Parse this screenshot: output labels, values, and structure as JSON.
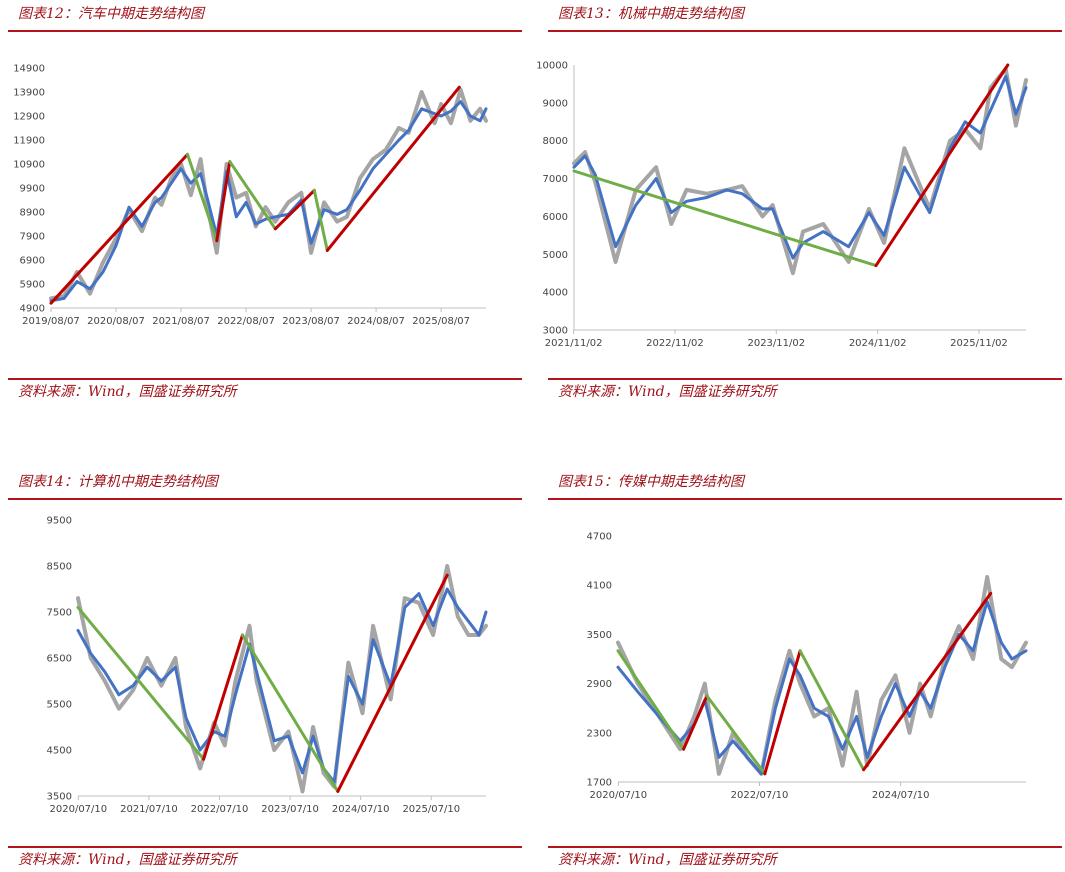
{
  "source_text": "资料来源：Wind，国盛证券研究所",
  "colors": {
    "title": "#a0121a",
    "rule": "#b3131b",
    "blue_series": "#4472c4",
    "gray_series": "#a5a5a5",
    "up_trend": "#c00000",
    "down_trend": "#70ad47",
    "axis": "#bfbfbf"
  },
  "chart_data": [
    {
      "type": "line",
      "title": "图表12：汽车中期走势结构图",
      "x_ticks": [
        "2019/08/07",
        "2020/08/07",
        "2021/08/07",
        "2022/08/07",
        "2023/08/07",
        "2024/08/07",
        "2025/08/07"
      ],
      "x_range": [
        2019.6,
        2026.29
      ],
      "y_ticks": [
        4900,
        5900,
        6900,
        7900,
        8900,
        9900,
        10900,
        11900,
        12900,
        13900,
        14900
      ],
      "ylim": [
        4900,
        14900
      ],
      "grid": false,
      "series": [
        {
          "kind": "gray",
          "x": [
            2019.6,
            2019.8,
            2020.0,
            2020.2,
            2020.4,
            2020.6,
            2020.8,
            2021.0,
            2021.2,
            2021.3,
            2021.45,
            2021.6,
            2021.75,
            2021.9,
            2022.0,
            2022.15,
            2022.3,
            2022.45,
            2022.6,
            2022.75,
            2022.9,
            2023.05,
            2023.25,
            2023.45,
            2023.6,
            2023.8,
            2024.0,
            2024.15,
            2024.35,
            2024.55,
            2024.75,
            2024.95,
            2025.1,
            2025.3,
            2025.5,
            2025.6,
            2025.75,
            2025.9,
            2026.05,
            2026.2,
            2026.29
          ],
          "y": [
            5300,
            5400,
            6400,
            5500,
            6800,
            7800,
            9000,
            8100,
            9500,
            9200,
            10300,
            10900,
            9600,
            11100,
            9200,
            7200,
            10900,
            9500,
            9700,
            8300,
            9100,
            8500,
            9300,
            9700,
            7200,
            9300,
            8500,
            8700,
            10300,
            11100,
            11500,
            12400,
            12200,
            13900,
            12600,
            13400,
            12600,
            14000,
            12700,
            13200,
            12700
          ]
        },
        {
          "kind": "blue",
          "x": [
            2019.6,
            2019.8,
            2020.0,
            2020.2,
            2020.4,
            2020.6,
            2020.8,
            2021.0,
            2021.2,
            2021.3,
            2021.45,
            2021.6,
            2021.75,
            2021.9,
            2022.0,
            2022.15,
            2022.3,
            2022.45,
            2022.6,
            2022.75,
            2022.9,
            2023.05,
            2023.25,
            2023.45,
            2023.6,
            2023.8,
            2024.0,
            2024.15,
            2024.35,
            2024.55,
            2024.75,
            2024.95,
            2025.1,
            2025.3,
            2025.5,
            2025.6,
            2025.75,
            2025.9,
            2026.05,
            2026.2,
            2026.29
          ],
          "y": [
            5200,
            5300,
            6000,
            5700,
            6400,
            7500,
            9100,
            8300,
            9300,
            9500,
            10100,
            10700,
            10100,
            10500,
            9500,
            7900,
            10600,
            8700,
            9300,
            8400,
            8600,
            8700,
            8800,
            9400,
            7600,
            9000,
            8800,
            9000,
            9800,
            10700,
            11300,
            11900,
            12300,
            13200,
            13000,
            12900,
            13100,
            13500,
            12900,
            12700,
            13200
          ]
        },
        {
          "kind": "trend",
          "dir": "up",
          "x": [
            2019.6,
            2021.7
          ],
          "y": [
            5100,
            11300
          ]
        },
        {
          "kind": "trend",
          "dir": "down",
          "x": [
            2021.7,
            2022.15
          ],
          "y": [
            11300,
            7700
          ]
        },
        {
          "kind": "trend",
          "dir": "up",
          "x": [
            2022.15,
            2022.35
          ],
          "y": [
            7700,
            11000
          ]
        },
        {
          "kind": "trend",
          "dir": "down",
          "x": [
            2022.35,
            2023.05
          ],
          "y": [
            11000,
            8200
          ]
        },
        {
          "kind": "trend",
          "dir": "up",
          "x": [
            2023.05,
            2023.65
          ],
          "y": [
            8200,
            9800
          ]
        },
        {
          "kind": "trend",
          "dir": "down",
          "x": [
            2023.65,
            2023.85
          ],
          "y": [
            9800,
            7300
          ]
        },
        {
          "kind": "trend",
          "dir": "up",
          "x": [
            2023.85,
            2025.88
          ],
          "y": [
            7300,
            14100
          ]
        }
      ]
    },
    {
      "type": "line",
      "title": "图表13：机械中期走势结构图",
      "x_ticks": [
        "2021/11/02",
        "2022/11/02",
        "2023/11/02",
        "2024/11/02",
        "2025/11/02"
      ],
      "x_range": [
        2021.84,
        2026.3
      ],
      "y_ticks": [
        3000,
        4000,
        5000,
        6000,
        7000,
        8000,
        9000,
        10000
      ],
      "ylim": [
        3000,
        10000
      ],
      "grid": false,
      "series": [
        {
          "kind": "gray",
          "x": [
            2021.84,
            2021.95,
            2022.05,
            2022.25,
            2022.45,
            2022.65,
            2022.8,
            2022.95,
            2023.15,
            2023.35,
            2023.5,
            2023.7,
            2023.8,
            2024.0,
            2024.1,
            2024.3,
            2024.55,
            2024.75,
            2024.9,
            2025.1,
            2025.35,
            2025.55,
            2025.7,
            2025.85,
            2025.95,
            2026.1,
            2026.2,
            2026.3
          ],
          "y": [
            7400,
            7700,
            6900,
            4800,
            6700,
            7300,
            5800,
            6700,
            6600,
            6700,
            6800,
            6000,
            6300,
            4500,
            5600,
            5800,
            4800,
            6200,
            5300,
            7800,
            6200,
            8000,
            8300,
            7800,
            9400,
            9900,
            8400,
            9600
          ]
        },
        {
          "kind": "blue",
          "x": [
            2021.84,
            2021.95,
            2022.05,
            2022.25,
            2022.45,
            2022.65,
            2022.8,
            2022.95,
            2023.15,
            2023.35,
            2023.5,
            2023.7,
            2023.8,
            2024.0,
            2024.1,
            2024.3,
            2024.55,
            2024.75,
            2024.9,
            2025.1,
            2025.35,
            2025.55,
            2025.7,
            2025.85,
            2025.95,
            2026.1,
            2026.2,
            2026.3
          ],
          "y": [
            7300,
            7600,
            7100,
            5200,
            6300,
            7000,
            6100,
            6400,
            6500,
            6700,
            6600,
            6200,
            6200,
            4900,
            5300,
            5600,
            5200,
            6100,
            5500,
            7300,
            6100,
            7800,
            8500,
            8200,
            8800,
            9700,
            8700,
            9400
          ]
        },
        {
          "kind": "trend",
          "dir": "down",
          "x": [
            2021.84,
            2024.82
          ],
          "y": [
            7200,
            4700
          ]
        },
        {
          "kind": "trend",
          "dir": "up",
          "x": [
            2024.82,
            2026.12
          ],
          "y": [
            4700,
            10000
          ]
        }
      ]
    },
    {
      "type": "line",
      "title": "图表14：计算机中期走势结构图",
      "x_ticks": [
        "2020/07/10",
        "2021/07/10",
        "2022/07/10",
        "2023/07/10",
        "2024/07/10",
        "2025/07/10"
      ],
      "x_range": [
        2020.52,
        2026.3
      ],
      "y_ticks": [
        3500,
        4500,
        5500,
        6500,
        7500,
        8500,
        9500
      ],
      "ylim": [
        3500,
        9500
      ],
      "grid": false,
      "series": [
        {
          "kind": "gray",
          "x": [
            2020.52,
            2020.7,
            2020.9,
            2021.1,
            2021.3,
            2021.5,
            2021.7,
            2021.9,
            2022.05,
            2022.25,
            2022.45,
            2022.6,
            2022.75,
            2022.95,
            2023.05,
            2023.3,
            2023.5,
            2023.7,
            2023.85,
            2024.0,
            2024.15,
            2024.35,
            2024.55,
            2024.7,
            2024.95,
            2025.15,
            2025.35,
            2025.55,
            2025.75,
            2025.9,
            2026.05,
            2026.2,
            2026.3
          ],
          "y": [
            7800,
            6500,
            6000,
            5400,
            5800,
            6500,
            5900,
            6500,
            5000,
            4100,
            5100,
            4600,
            6000,
            7200,
            6000,
            4500,
            4900,
            3600,
            5000,
            4000,
            3700,
            6400,
            5300,
            7200,
            5600,
            7800,
            7700,
            7000,
            8500,
            7400,
            7000,
            7000,
            7200
          ]
        },
        {
          "kind": "blue",
          "x": [
            2020.52,
            2020.7,
            2020.9,
            2021.1,
            2021.3,
            2021.5,
            2021.7,
            2021.9,
            2022.05,
            2022.25,
            2022.45,
            2022.6,
            2022.75,
            2022.95,
            2023.05,
            2023.3,
            2023.5,
            2023.7,
            2023.85,
            2024.0,
            2024.15,
            2024.35,
            2024.55,
            2024.7,
            2024.95,
            2025.15,
            2025.35,
            2025.55,
            2025.75,
            2025.9,
            2026.05,
            2026.2,
            2026.3
          ],
          "y": [
            7100,
            6600,
            6200,
            5700,
            5900,
            6300,
            6000,
            6300,
            5200,
            4500,
            4900,
            4800,
            5700,
            6800,
            6200,
            4700,
            4800,
            4000,
            4800,
            4100,
            3800,
            6100,
            5500,
            6900,
            5900,
            7600,
            7900,
            7200,
            8000,
            7600,
            7300,
            7000,
            7500
          ]
        },
        {
          "kind": "trend",
          "dir": "down",
          "x": [
            2020.52,
            2022.3
          ],
          "y": [
            7600,
            4300
          ]
        },
        {
          "kind": "trend",
          "dir": "up",
          "x": [
            2022.3,
            2022.85
          ],
          "y": [
            4300,
            7000
          ]
        },
        {
          "kind": "trend",
          "dir": "down",
          "x": [
            2022.85,
            2024.2
          ],
          "y": [
            7000,
            3600
          ]
        },
        {
          "kind": "trend",
          "dir": "up",
          "x": [
            2024.2,
            2025.75
          ],
          "y": [
            3600,
            8300
          ]
        }
      ]
    },
    {
      "type": "line",
      "title": "图表15：传媒中期走势结构图",
      "x_ticks": [
        "2020/07/10",
        "2022/07/10",
        "2024/07/10"
      ],
      "x_range": [
        2020.52,
        2026.3
      ],
      "y_ticks": [
        1700,
        2300,
        2900,
        3500,
        4100,
        4700
      ],
      "ylim": [
        1700,
        4700
      ],
      "grid": false,
      "series": [
        {
          "kind": "gray",
          "x": [
            2020.52,
            2020.8,
            2021.1,
            2021.4,
            2021.6,
            2021.75,
            2021.95,
            2022.15,
            2022.35,
            2022.55,
            2022.75,
            2022.95,
            2023.1,
            2023.3,
            2023.5,
            2023.7,
            2023.9,
            2024.05,
            2024.25,
            2024.45,
            2024.65,
            2024.8,
            2024.95,
            2025.15,
            2025.35,
            2025.55,
            2025.75,
            2025.95,
            2026.1,
            2026.3
          ],
          "y": [
            3400,
            2900,
            2500,
            2100,
            2500,
            2900,
            1800,
            2300,
            2000,
            1800,
            2700,
            3300,
            2900,
            2500,
            2600,
            1900,
            2800,
            1900,
            2700,
            3000,
            2300,
            2900,
            2500,
            3200,
            3600,
            3200,
            4200,
            3200,
            3100,
            3400
          ]
        },
        {
          "kind": "blue",
          "x": [
            2020.52,
            2020.8,
            2021.1,
            2021.4,
            2021.6,
            2021.75,
            2021.95,
            2022.15,
            2022.35,
            2022.55,
            2022.75,
            2022.95,
            2023.1,
            2023.3,
            2023.5,
            2023.7,
            2023.9,
            2024.05,
            2024.25,
            2024.45,
            2024.65,
            2024.8,
            2024.95,
            2025.15,
            2025.35,
            2025.55,
            2025.75,
            2025.95,
            2026.1,
            2026.3
          ],
          "y": [
            3100,
            2800,
            2500,
            2200,
            2400,
            2700,
            2000,
            2200,
            2000,
            1800,
            2600,
            3200,
            3000,
            2600,
            2500,
            2100,
            2500,
            2000,
            2500,
            2900,
            2500,
            2800,
            2600,
            3100,
            3500,
            3300,
            3900,
            3400,
            3200,
            3300
          ]
        },
        {
          "kind": "trend",
          "dir": "down",
          "x": [
            2020.52,
            2021.45
          ],
          "y": [
            3300,
            2100
          ]
        },
        {
          "kind": "trend",
          "dir": "up",
          "x": [
            2021.45,
            2021.78
          ],
          "y": [
            2100,
            2750
          ]
        },
        {
          "kind": "trend",
          "dir": "down",
          "x": [
            2021.78,
            2022.6
          ],
          "y": [
            2750,
            1800
          ]
        },
        {
          "kind": "trend",
          "dir": "up",
          "x": [
            2022.6,
            2023.1
          ],
          "y": [
            1800,
            3300
          ]
        },
        {
          "kind": "trend",
          "dir": "down",
          "x": [
            2023.1,
            2024.0
          ],
          "y": [
            3300,
            1850
          ]
        },
        {
          "kind": "trend",
          "dir": "up",
          "x": [
            2024.0,
            2025.8
          ],
          "y": [
            1850,
            4000
          ]
        }
      ]
    }
  ]
}
